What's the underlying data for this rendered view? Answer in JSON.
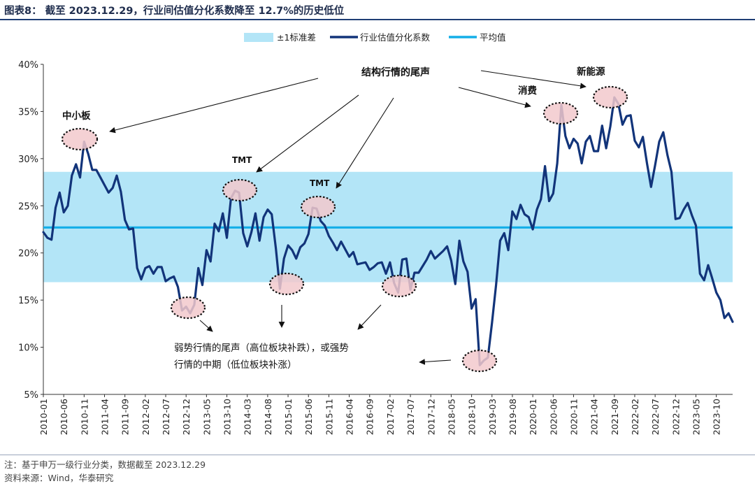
{
  "title": "图表8： 截至 2023.12.29，行业间估值分化系数降至 12.7%的历史低位",
  "chart_data": {
    "type": "line",
    "title": "截至 2023.12.29，行业间估值分化系数降至 12.7%的历史低位",
    "xlabel": "",
    "ylabel": "",
    "ylim": [
      5,
      40
    ],
    "y_ticks": [
      "5%",
      "10%",
      "15%",
      "20%",
      "25%",
      "30%",
      "35%",
      "40%"
    ],
    "x_tick_labels": [
      "2010-01",
      "2010-06",
      "2010-11",
      "2011-04",
      "2011-09",
      "2012-02",
      "2012-07",
      "2012-12",
      "2013-05",
      "2013-10",
      "2014-03",
      "2014-08",
      "2015-01",
      "2015-06",
      "2015-11",
      "2016-04",
      "2016-09",
      "2017-02",
      "2017-07",
      "2017-12",
      "2018-05",
      "2018-10",
      "2019-03",
      "2019-08",
      "2020-01",
      "2020-06",
      "2020-11",
      "2021-04",
      "2021-09",
      "2022-02",
      "2022-07",
      "2022-12",
      "2023-05",
      "2023-10"
    ],
    "legend": [
      "±1标准差",
      "行业估值分化系数",
      "平均值"
    ],
    "band": {
      "name": "±1标准差",
      "low": 16.9,
      "high": 28.6,
      "color": "#b3e5f7"
    },
    "mean": {
      "name": "平均值",
      "value": 22.7,
      "color": "#13aee8"
    },
    "series": [
      {
        "name": "行业估值分化系数",
        "color": "#12347a",
        "values": [
          22.2,
          21.6,
          21.4,
          24.8,
          26.4,
          24.3,
          25.0,
          28.2,
          29.4,
          28.0,
          31.8,
          30.5,
          28.8,
          28.8,
          28.0,
          27.2,
          26.4,
          26.9,
          28.2,
          26.5,
          23.5,
          22.5,
          22.6,
          18.4,
          17.2,
          18.4,
          18.6,
          17.8,
          18.5,
          18.5,
          17.0,
          17.3,
          17.5,
          16.4,
          13.9,
          14.3,
          13.6,
          14.5,
          18.4,
          16.6,
          20.3,
          19.1,
          23.1,
          22.3,
          24.2,
          21.6,
          25.8,
          26.6,
          26.4,
          22.1,
          20.7,
          22.2,
          24.2,
          21.3,
          23.8,
          24.6,
          24.1,
          20.5,
          16.2,
          19.4,
          20.8,
          20.3,
          19.4,
          20.6,
          21.0,
          22.0,
          24.8,
          24.7,
          23.4,
          22.9,
          21.8,
          21.1,
          20.3,
          21.2,
          20.4,
          19.6,
          20.1,
          18.8,
          18.9,
          19.0,
          18.2,
          18.5,
          18.9,
          19.0,
          17.8,
          19.0,
          16.8,
          15.8,
          19.3,
          19.4,
          16.1,
          17.9,
          17.9,
          18.6,
          19.3,
          20.2,
          19.4,
          19.8,
          20.2,
          20.7,
          19.2,
          16.7,
          21.3,
          19.1,
          18.0,
          14.1,
          15.1,
          8.1,
          8.6,
          8.9,
          12.6,
          16.6,
          21.3,
          22.1,
          20.3,
          24.4,
          23.6,
          25.1,
          24.1,
          23.8,
          22.5,
          24.6,
          25.7,
          29.2,
          25.5,
          26.3,
          29.5,
          35.7,
          32.4,
          31.1,
          32.1,
          31.6,
          29.5,
          31.8,
          32.4,
          30.8,
          30.8,
          33.5,
          31.1,
          33.4,
          36.5,
          35.8,
          33.6,
          34.5,
          34.6,
          31.9,
          31.2,
          32.3,
          29.5,
          27.0,
          29.3,
          31.8,
          32.8,
          30.4,
          28.6,
          23.6,
          23.7,
          24.6,
          25.3,
          24.0,
          22.9,
          17.8,
          17.1,
          18.7,
          17.3,
          15.8,
          15.0,
          13.1,
          13.6,
          12.7
        ]
      }
    ],
    "annotations": [
      "结构行情的尾声",
      "中小板",
      "TMT",
      "TMT",
      "消费",
      "新能源",
      "弱势行情的尾声（高位板块补跌），或强势",
      "行情的中期（低位板块补涨）"
    ]
  },
  "footer": {
    "note": "注：基于申万一级行业分类，数据截至 2023.12.29",
    "source": "资料来源：Wind，华泰研究"
  }
}
